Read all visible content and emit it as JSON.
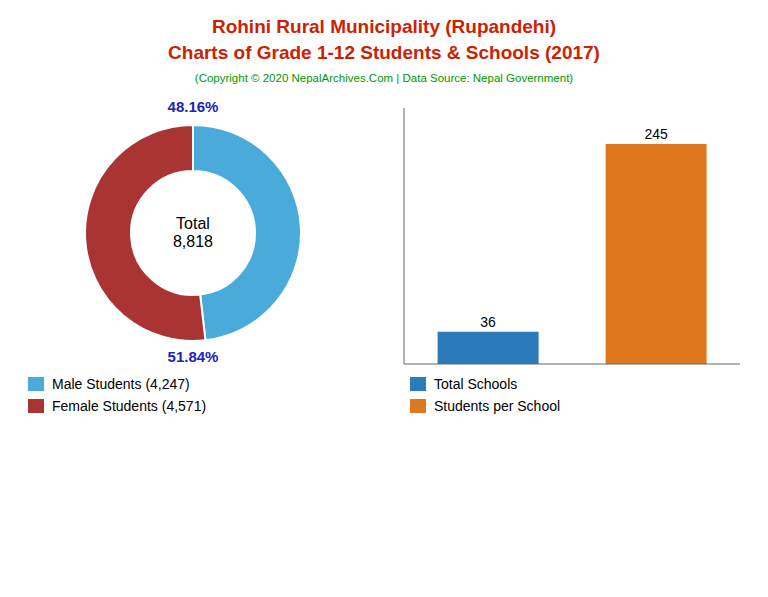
{
  "title": "Rohini Rural Municipality (Rupandehi)\nCharts of Grade 1-12 Students & Schools (2017)",
  "subtitle": "(Copyright © 2020 NepalArchives.Com | Data Source: Nepal Government)",
  "chart_data": [
    {
      "type": "pie",
      "categories": [
        "Male Students (4,247)",
        "Female Students (4,571)"
      ],
      "values": [
        48.16,
        51.84
      ],
      "value_labels": [
        "48.16%",
        "51.84%"
      ],
      "colors": [
        "#4aabdb",
        "#aa3333"
      ],
      "data_labels": true,
      "annotations": [
        "Total\n8,818"
      ],
      "legend": "bottom"
    },
    {
      "type": "bar",
      "categories": [
        "Total Schools",
        "Students per School"
      ],
      "values": [
        36,
        245
      ],
      "colors": [
        "#2b7bba",
        "#e07820"
      ],
      "ylim": [
        0,
        285
      ],
      "data_labels": true,
      "tick_labels": false,
      "legend": "bottom"
    }
  ]
}
